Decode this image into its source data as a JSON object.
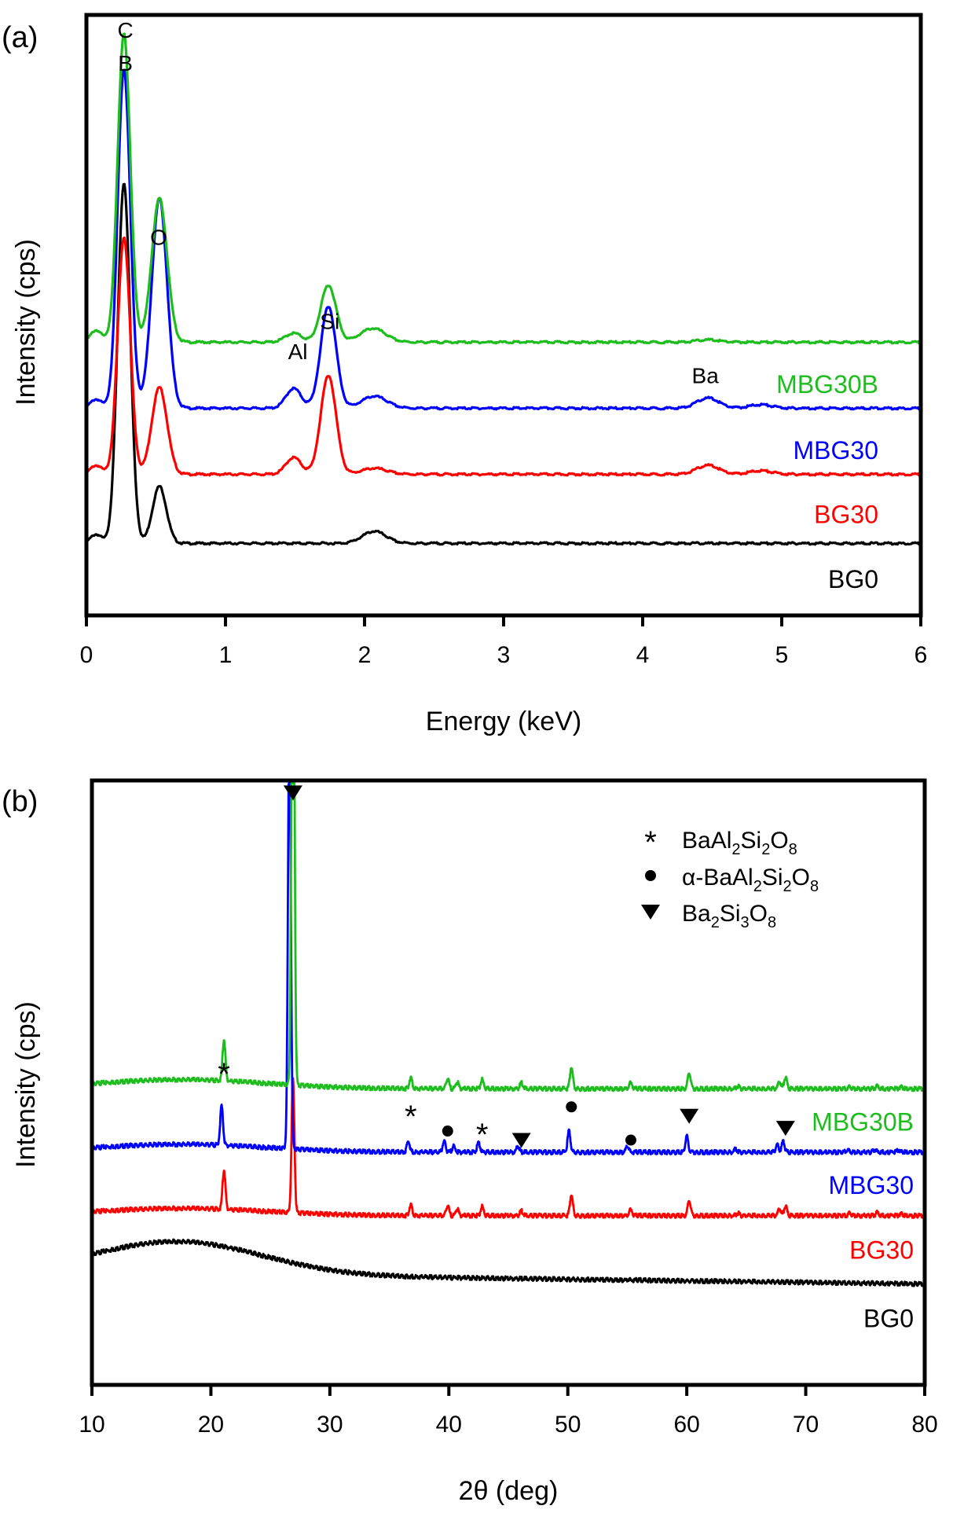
{
  "chart_data": [
    {
      "panel_label": "(a)",
      "type": "line",
      "title": "",
      "xlabel": "Energy (keV)",
      "ylabel": "Intensity (cps)",
      "xlim": [
        0,
        6
      ],
      "ylim": [
        0,
        100
      ],
      "xticks": [
        0,
        1,
        2,
        3,
        4,
        5,
        6
      ],
      "xtick_labels": [
        "0",
        "1",
        "2",
        "3",
        "4",
        "5",
        "6"
      ],
      "yticks": [],
      "grid": false,
      "y_units": "arbitrary (stacked, offset traces)",
      "peak_annotations": [
        {
          "label": "C",
          "x": 0.28,
          "y": 97.5
        },
        {
          "label": "B",
          "x": 0.28,
          "y": 92
        },
        {
          "label": "O",
          "x": 0.52,
          "y": 63
        },
        {
          "label": "Al",
          "x": 1.52,
          "y": 44
        },
        {
          "label": "Si",
          "x": 1.75,
          "y": 49
        },
        {
          "label": "Ba",
          "x": 4.45,
          "y": 40
        }
      ],
      "series": [
        {
          "name": "MBG30B",
          "color": "#1ebd1e",
          "baseline": 45.5,
          "label_y": 38.5,
          "peaks": [
            [
              0.07,
              2.0,
              0.04
            ],
            [
              0.27,
              51.5,
              0.045
            ],
            [
              0.525,
              24.0,
              0.055
            ],
            [
              1.49,
              1.5,
              0.06
            ],
            [
              1.74,
              9.5,
              0.055
            ],
            [
              2.06,
              2.3,
              0.09
            ],
            [
              4.47,
              0.4,
              0.08
            ]
          ]
        },
        {
          "name": "MBG30",
          "color": "#0000ff",
          "baseline": 34.5,
          "label_y": 27.5,
          "peaks": [
            [
              0.07,
              1.5,
              0.04
            ],
            [
              0.27,
              56.5,
              0.045
            ],
            [
              0.525,
              35.0,
              0.055
            ],
            [
              1.49,
              3.3,
              0.055
            ],
            [
              1.74,
              17.0,
              0.055
            ],
            [
              2.07,
              2.0,
              0.09
            ],
            [
              4.47,
              1.7,
              0.08
            ],
            [
              4.85,
              0.6,
              0.08
            ]
          ]
        },
        {
          "name": "BG30",
          "color": "#ff0000",
          "baseline": 23.5,
          "label_y": 16.8,
          "peaks": [
            [
              0.07,
              1.5,
              0.04
            ],
            [
              0.27,
              39.5,
              0.045
            ],
            [
              0.525,
              14.5,
              0.055
            ],
            [
              1.49,
              2.8,
              0.055
            ],
            [
              1.74,
              16.5,
              0.055
            ],
            [
              2.07,
              1.0,
              0.09
            ],
            [
              4.47,
              1.5,
              0.08
            ],
            [
              4.85,
              0.6,
              0.08
            ]
          ]
        },
        {
          "name": "BG0",
          "color": "#000000",
          "baseline": 12.0,
          "label_y": 6.0,
          "peaks": [
            [
              0.07,
              1.5,
              0.04
            ],
            [
              0.27,
              60.0,
              0.045
            ],
            [
              0.525,
              9.5,
              0.05
            ],
            [
              2.07,
              2.0,
              0.085
            ]
          ]
        }
      ]
    },
    {
      "panel_label": "(b)",
      "type": "line",
      "title": "",
      "xlabel": "2θ  (deg)",
      "ylabel": "Intensity (cps)",
      "xlim": [
        10,
        80
      ],
      "ylim": [
        0,
        100
      ],
      "xticks": [
        10,
        20,
        30,
        40,
        50,
        60,
        70,
        80
      ],
      "xtick_labels": [
        "10",
        "20",
        "30",
        "40",
        "50",
        "60",
        "70",
        "80"
      ],
      "yticks": [],
      "grid": false,
      "y_units": "arbitrary (stacked, offset traces)",
      "legend": {
        "placement": "top-right",
        "entries": [
          {
            "marker": "star",
            "text_parts": [
              [
                "BaAl",
                ""
              ],
              [
                "2",
                "sub"
              ],
              [
                "Si",
                ""
              ],
              [
                "2",
                "sub"
              ],
              [
                "O",
                ""
              ],
              [
                "8",
                "sub"
              ]
            ]
          },
          {
            "marker": "circle",
            "text_parts": [
              [
                "α-BaAl",
                ""
              ],
              [
                "2",
                "sub"
              ],
              [
                "Si",
                ""
              ],
              [
                "2",
                "sub"
              ],
              [
                "O",
                ""
              ],
              [
                "8",
                "sub"
              ]
            ]
          },
          {
            "marker": "triangle-down",
            "text_parts": [
              [
                "Ba",
                ""
              ],
              [
                "2",
                "sub"
              ],
              [
                "Si",
                ""
              ],
              [
                "3",
                "sub"
              ],
              [
                "O",
                ""
              ],
              [
                "8",
                "sub"
              ]
            ]
          }
        ]
      },
      "phase_markers": [
        {
          "marker": "triangle-down",
          "x": 26.9,
          "y": 98
        },
        {
          "marker": "star",
          "x": 21.1,
          "y": 52
        },
        {
          "marker": "star",
          "x": 36.8,
          "y": 45
        },
        {
          "marker": "circle",
          "x": 39.9,
          "y": 42
        },
        {
          "marker": "star",
          "x": 42.8,
          "y": 42
        },
        {
          "marker": "triangle-down",
          "x": 46.1,
          "y": 40.5
        },
        {
          "marker": "circle",
          "x": 50.3,
          "y": 46
        },
        {
          "marker": "circle",
          "x": 55.3,
          "y": 40.5
        },
        {
          "marker": "triangle-down",
          "x": 60.2,
          "y": 44.5
        },
        {
          "marker": "triangle-down",
          "x": 68.3,
          "y": 42.5
        }
      ],
      "series": [
        {
          "name": "MBG30B",
          "color": "#1ebd1e",
          "baseline": 49.0,
          "label_y": 43.5,
          "hump": [
            17.5,
            1.5,
            7.0
          ],
          "peaks": [
            [
              21.1,
              6.8
            ],
            [
              26.9,
              94.5
            ],
            [
              36.8,
              1.8
            ],
            [
              39.9,
              1.6
            ],
            [
              40.7,
              1.1
            ],
            [
              42.8,
              1.5
            ],
            [
              46.1,
              1.0
            ],
            [
              50.3,
              3.6
            ],
            [
              55.3,
              1.0
            ],
            [
              60.2,
              2.7
            ],
            [
              64.3,
              0.4
            ],
            [
              67.8,
              1.2
            ],
            [
              68.3,
              1.9
            ],
            [
              73.7,
              0.3
            ],
            [
              76.0,
              0.4
            ],
            [
              78.0,
              0.3
            ]
          ]
        },
        {
          "name": "MBG30",
          "color": "#0000ff",
          "baseline": 38.5,
          "label_y": 33.0,
          "hump": [
            17.5,
            1.3,
            7.0
          ],
          "peaks": [
            [
              20.9,
              6.5
            ],
            [
              26.6,
              71.0
            ],
            [
              36.6,
              1.8
            ],
            [
              39.6,
              1.8
            ],
            [
              40.4,
              1.0
            ],
            [
              42.5,
              1.6
            ],
            [
              45.8,
              1.0
            ],
            [
              50.1,
              3.5
            ],
            [
              55.0,
              1.0
            ],
            [
              60.0,
              2.7
            ],
            [
              64.1,
              0.5
            ],
            [
              67.6,
              1.2
            ],
            [
              68.1,
              1.8
            ],
            [
              73.5,
              0.4
            ],
            [
              75.8,
              0.4
            ],
            [
              77.8,
              0.4
            ]
          ]
        },
        {
          "name": "BG30",
          "color": "#ff0000",
          "baseline": 28.0,
          "label_y": 22.3,
          "hump": [
            17.5,
            1.2,
            7.0
          ],
          "peaks": [
            [
              21.1,
              6.5
            ],
            [
              26.9,
              22.0
            ],
            [
              36.8,
              1.8
            ],
            [
              39.9,
              1.6
            ],
            [
              40.7,
              1.1
            ],
            [
              42.8,
              1.5
            ],
            [
              46.1,
              0.8
            ],
            [
              50.3,
              3.5
            ],
            [
              55.3,
              1.0
            ],
            [
              60.2,
              2.6
            ],
            [
              64.3,
              0.4
            ],
            [
              67.8,
              1.2
            ],
            [
              68.3,
              1.6
            ],
            [
              73.7,
              0.4
            ],
            [
              76.0,
              0.5
            ],
            [
              78.0,
              0.3
            ]
          ]
        },
        {
          "name": "BG0",
          "color": "#000000",
          "baseline": 18.5,
          "label_y": 11.0,
          "hump": [
            17.3,
            5.4,
            7.0
          ],
          "tail": -1.8,
          "peaks": []
        }
      ]
    }
  ]
}
